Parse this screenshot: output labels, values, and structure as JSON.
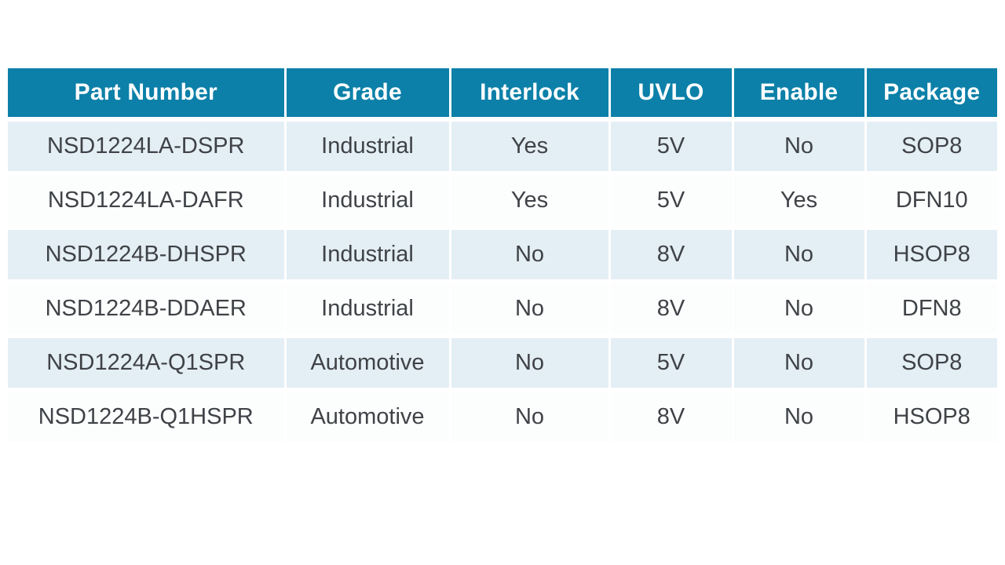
{
  "colors": {
    "header_bg": "#0c80a8",
    "header_text": "#ffffff",
    "row_odd_bg": "#e4eef5",
    "row_even_bg": "#fcfdfd",
    "body_text": "#3f4347",
    "page_bg": "#ffffff"
  },
  "table": {
    "columns": {
      "part_number": "Part Number",
      "grade": "Grade",
      "interlock": "Interlock",
      "uvlo": "UVLO",
      "enable": "Enable",
      "package": "Package"
    },
    "rows": [
      {
        "part_number": "NSD1224LA-DSPR",
        "grade": "Industrial",
        "interlock": "Yes",
        "uvlo": "5V",
        "enable": "No",
        "package": "SOP8"
      },
      {
        "part_number": "NSD1224LA-DAFR",
        "grade": "Industrial",
        "interlock": "Yes",
        "uvlo": "5V",
        "enable": "Yes",
        "package": "DFN10"
      },
      {
        "part_number": "NSD1224B-DHSPR",
        "grade": "Industrial",
        "interlock": "No",
        "uvlo": "8V",
        "enable": "No",
        "package": "HSOP8"
      },
      {
        "part_number": "NSD1224B-DDAER",
        "grade": "Industrial",
        "interlock": "No",
        "uvlo": "8V",
        "enable": "No",
        "package": "DFN8"
      },
      {
        "part_number": "NSD1224A-Q1SPR",
        "grade": "Automotive",
        "interlock": "No",
        "uvlo": "5V",
        "enable": "No",
        "package": "SOP8"
      },
      {
        "part_number": "NSD1224B-Q1HSPR",
        "grade": "Automotive",
        "interlock": "No",
        "uvlo": "8V",
        "enable": "No",
        "package": "HSOP8"
      }
    ]
  }
}
